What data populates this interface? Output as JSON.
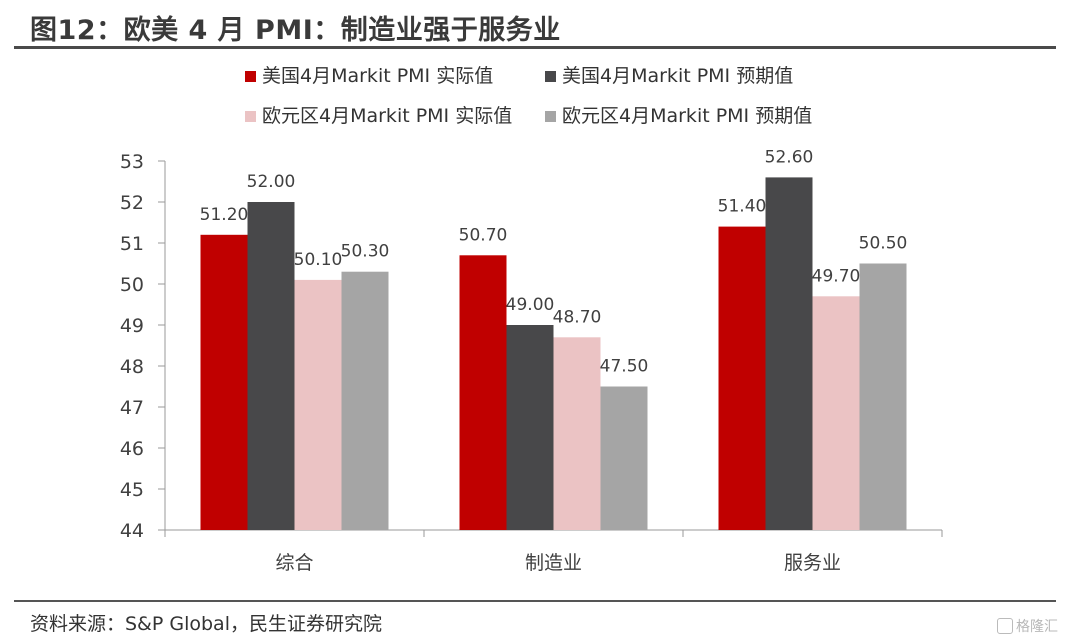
{
  "title": "图12：欧美 4 月 PMI：制造业强于服务业",
  "source": "资料来源：S&P Global，民生证券研究院",
  "watermark": "格隆汇",
  "chart_data": {
    "type": "bar",
    "categories": [
      "综合",
      "制造业",
      "服务业"
    ],
    "series": [
      {
        "name": "美国4月Markit PMI 实际值",
        "color": "#c00000",
        "values": [
          51.2,
          50.7,
          51.4
        ],
        "labels": [
          "51.20",
          "50.70",
          "51.40"
        ]
      },
      {
        "name": "美国4月Markit PMI 预期值",
        "color": "#48484a",
        "values": [
          52.0,
          49.0,
          52.6
        ],
        "labels": [
          "52.00",
          "49.00",
          "52.60"
        ]
      },
      {
        "name": "欧元区4月Markit PMI 实际值",
        "color": "#ebc3c4",
        "values": [
          50.1,
          48.7,
          49.7
        ],
        "labels": [
          "50.10",
          "48.70",
          "49.70"
        ]
      },
      {
        "name": "欧元区4月Markit PMI 预期值",
        "color": "#a5a5a5",
        "values": [
          50.3,
          47.5,
          50.5
        ],
        "labels": [
          "50.30",
          "47.50",
          "50.50"
        ]
      }
    ],
    "ylim": [
      44,
      53
    ],
    "yticks": [
      "44",
      "45",
      "46",
      "47",
      "48",
      "49",
      "50",
      "51",
      "52",
      "53"
    ],
    "grid": false,
    "legend_position": "top"
  }
}
